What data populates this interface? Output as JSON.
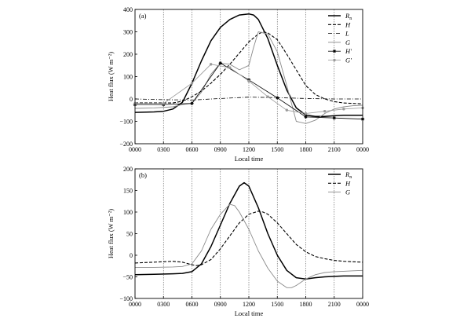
{
  "chart_data": [
    {
      "type": "line",
      "panel_label": "(a)",
      "xlabel": "Local time",
      "ylabel": "Heat flux (W m⁻²)",
      "xlim": [
        0,
        24
      ],
      "ylim": [
        -200,
        400
      ],
      "xticks": [
        0,
        3,
        6,
        9,
        12,
        15,
        18,
        21,
        24
      ],
      "xtick_labels": [
        "0000",
        "0300",
        "0600",
        "0900",
        "1200",
        "1500",
        "1800",
        "2100",
        "0000"
      ],
      "yticks": [
        -200,
        -100,
        0,
        100,
        200,
        300,
        400
      ],
      "ytick_labels": [
        "−200",
        "−100",
        "0",
        "100",
        "200",
        "300",
        "400"
      ],
      "vlines": [
        3,
        6,
        9,
        12,
        15,
        18,
        21
      ],
      "legend_position": "top-right",
      "series": [
        {
          "name": "R",
          "subscript": "n",
          "style": "solid-thick",
          "color": "#000000",
          "x": [
            0,
            2,
            3,
            4,
            5,
            6,
            7,
            8,
            9,
            10,
            11,
            12,
            12.5,
            13,
            14,
            15,
            16,
            17,
            18,
            19,
            20,
            21,
            22,
            23,
            24
          ],
          "y": [
            -60,
            -58,
            -55,
            -45,
            -15,
            70,
            170,
            260,
            320,
            355,
            375,
            380,
            375,
            355,
            270,
            150,
            40,
            -40,
            -72,
            -78,
            -78,
            -75,
            -73,
            -73,
            -73
          ]
        },
        {
          "name": "H",
          "subscript": "",
          "style": "dashed",
          "color": "#000000",
          "x": [
            0,
            2,
            4,
            5,
            6,
            7,
            8,
            9,
            10,
            11,
            12,
            13,
            13.5,
            14,
            15,
            16,
            17,
            18,
            19,
            20,
            21,
            22,
            23,
            24
          ],
          "y": [
            -18,
            -18,
            -18,
            -10,
            10,
            35,
            70,
            110,
            155,
            205,
            255,
            290,
            300,
            295,
            265,
            200,
            130,
            60,
            20,
            0,
            -12,
            -18,
            -20,
            -22
          ]
        },
        {
          "name": "L",
          "subscript": "",
          "style": "dashdot",
          "color": "#000000",
          "x": [
            0,
            3,
            6,
            9,
            12,
            15,
            18,
            21,
            24
          ],
          "y": [
            0,
            -3,
            -5,
            2,
            8,
            6,
            2,
            0,
            0
          ]
        },
        {
          "name": "G",
          "subscript": "",
          "style": "solid-thin",
          "color": "#8a8a8a",
          "x": [
            0,
            2,
            4,
            5,
            6,
            7,
            8,
            9,
            10,
            11,
            12,
            12.5,
            13,
            14,
            15,
            16,
            17,
            18,
            19,
            20,
            21,
            22,
            23,
            24
          ],
          "y": [
            -42,
            -40,
            -35,
            -25,
            -20,
            30,
            110,
            160,
            155,
            130,
            150,
            230,
            300,
            290,
            210,
            60,
            -100,
            -110,
            -95,
            -65,
            -45,
            -35,
            -30,
            -28
          ]
        },
        {
          "name": "H",
          "subscript": "",
          "prime": true,
          "style": "solid-markers",
          "color": "#000000",
          "x": [
            0,
            3,
            6,
            9,
            12,
            15,
            18,
            21,
            24
          ],
          "y": [
            -25,
            -25,
            -20,
            160,
            85,
            5,
            -80,
            -85,
            -90
          ]
        },
        {
          "name": "G",
          "subscript": "",
          "prime": true,
          "style": "solid-markers-gray",
          "color": "#9a9a9a",
          "x": [
            0,
            3,
            6,
            8,
            10,
            12,
            14,
            16,
            18,
            20,
            22,
            24
          ],
          "y": [
            -20,
            -20,
            70,
            155,
            140,
            80,
            10,
            -50,
            -65,
            -55,
            -45,
            -40
          ]
        }
      ]
    },
    {
      "type": "line",
      "panel_label": "(b)",
      "xlabel": "Local time",
      "ylabel": "Heat flux (W m⁻²)",
      "xlim": [
        0,
        24
      ],
      "ylim": [
        -100,
        200
      ],
      "xticks": [
        0,
        3,
        6,
        9,
        12,
        15,
        18,
        21,
        24
      ],
      "xtick_labels": [
        "0000",
        "0300",
        "0600",
        "0900",
        "1200",
        "1500",
        "1800",
        "2100",
        "0000"
      ],
      "yticks": [
        -100,
        -50,
        0,
        50,
        100,
        150,
        200
      ],
      "ytick_labels": [
        "−100",
        "−50",
        "0",
        "50",
        "100",
        "150",
        "200"
      ],
      "vlines": [
        3,
        6,
        9,
        12,
        15,
        18,
        21
      ],
      "legend_position": "top-right",
      "series": [
        {
          "name": "R",
          "subscript": "n",
          "style": "solid-thick",
          "color": "#000000",
          "x": [
            0,
            2,
            4,
            5,
            6,
            7,
            8,
            9,
            10,
            11,
            11.5,
            12,
            13,
            14,
            15,
            16,
            17,
            18,
            19,
            20,
            21,
            22,
            23,
            24
          ],
          "y": [
            -45,
            -44,
            -43,
            -42,
            -38,
            -20,
            20,
            70,
            120,
            160,
            168,
            160,
            110,
            50,
            0,
            -35,
            -52,
            -55,
            -52,
            -50,
            -49,
            -48,
            -48,
            -48
          ]
        },
        {
          "name": "H",
          "subscript": "",
          "style": "dashed",
          "color": "#000000",
          "x": [
            0,
            2,
            4,
            5,
            6,
            6.5,
            7,
            8,
            9,
            10,
            11,
            12,
            13,
            13.5,
            14,
            15,
            16,
            17,
            18,
            19,
            20,
            21,
            22,
            23,
            24
          ],
          "y": [
            -18,
            -16,
            -14,
            -16,
            -22,
            -24,
            -22,
            -10,
            15,
            45,
            75,
            95,
            102,
            100,
            95,
            75,
            50,
            25,
            8,
            -3,
            -8,
            -12,
            -14,
            -15,
            -16
          ]
        },
        {
          "name": "G",
          "subscript": "",
          "style": "solid-thin",
          "color": "#8a8a8a",
          "x": [
            0,
            2,
            4,
            5,
            6,
            7,
            8,
            9,
            10,
            10.5,
            11,
            12,
            13,
            14,
            15,
            16,
            16.5,
            17,
            18,
            19,
            20,
            21,
            22,
            23,
            24
          ],
          "y": [
            -28,
            -28,
            -27,
            -26,
            -20,
            10,
            60,
            95,
            118,
            115,
            100,
            60,
            10,
            -30,
            -60,
            -75,
            -75,
            -70,
            -55,
            -45,
            -40,
            -38,
            -37,
            -36,
            -35
          ]
        }
      ]
    }
  ]
}
